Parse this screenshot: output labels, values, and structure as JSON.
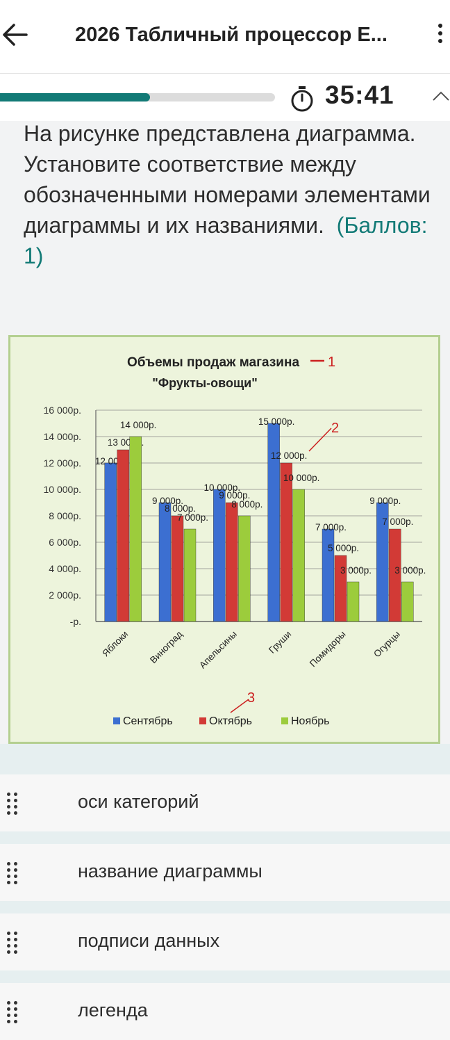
{
  "header": {
    "title": "2026 Табличный процессор  E...",
    "back_icon": "arrow-left-icon",
    "menu_icon": "more-vertical-icon"
  },
  "progress": {
    "fraction": 0.545,
    "timer": "35:41",
    "color": "#127a76"
  },
  "question": {
    "text": "На рисунке представлена диаграмма. Установите соответствие между обозначенными номерами элементами диаграммы и их названиями.",
    "points": "(Баллов: 1)"
  },
  "chart_data": {
    "type": "bar",
    "title": "Объемы продаж магазина",
    "subtitle": "\"Фрукты-овощи\"",
    "categories": [
      "Яблоки",
      "Виноград",
      "Апельсины",
      "Груши",
      "Помидоры",
      "Огурцы"
    ],
    "series": [
      {
        "name": "Сентябрь",
        "color": "#3c6fd1",
        "values": [
          12000,
          9000,
          10000,
          15000,
          7000,
          9000
        ],
        "labels": [
          "12 000р.",
          "9 000р.",
          "10 000р.",
          "15 000р.",
          "7 000р.",
          "9 000р."
        ]
      },
      {
        "name": "Октябрь",
        "color": "#d23a36",
        "values": [
          13000,
          8000,
          9000,
          12000,
          5000,
          7000
        ],
        "labels": [
          "13 000р.",
          "8 000р.",
          "9 000р.",
          "12 000р.",
          "5 000р.",
          "7 000р."
        ]
      },
      {
        "name": "Ноябрь",
        "color": "#9ccc3c",
        "values": [
          14000,
          7000,
          8000,
          10000,
          3000,
          3000
        ],
        "labels": [
          "14 000р.",
          "7 000р.",
          "8 000р.",
          "10 000р.",
          "3 000р.",
          "3 000р."
        ]
      }
    ],
    "y_ticks": [
      "16 000р.",
      "14 000р.",
      "12 000р.",
      "10 000р.",
      "8 000р.",
      "6 000р.",
      "4 000р.",
      "2 000р.",
      "-р."
    ],
    "ylim": [
      0,
      16000
    ],
    "grid": true,
    "legend": "bottom",
    "markers": [
      "1",
      "2",
      "3"
    ],
    "marker_color": "#cc1f1f"
  },
  "answers": [
    {
      "label": "оси категорий"
    },
    {
      "label": "название диаграммы"
    },
    {
      "label": "подписи данных"
    },
    {
      "label": "легенда"
    }
  ]
}
